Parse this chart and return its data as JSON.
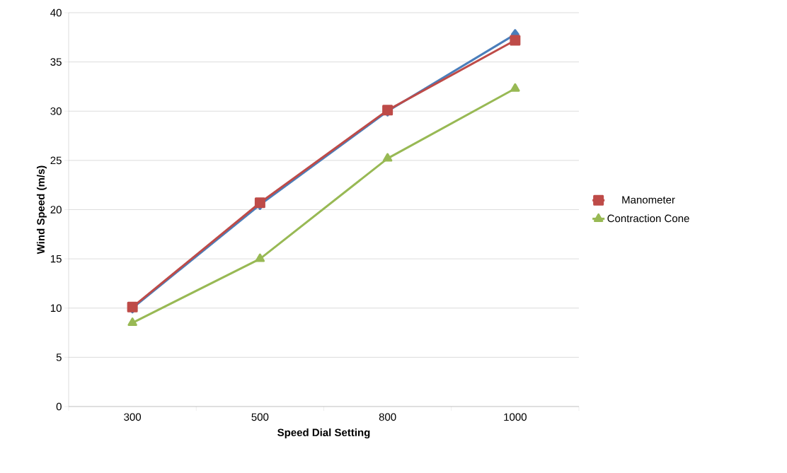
{
  "chart_data": {
    "type": "line",
    "xlabel": "Speed Dial Setting",
    "ylabel": "Wind Speed (m/s)",
    "categories": [
      "300",
      "500",
      "800",
      "1000"
    ],
    "series": [
      {
        "color": "#4a7ebb",
        "marker": "diamond",
        "values": [
          10,
          20.5,
          30,
          37.8
        ]
      },
      {
        "name": "Manometer",
        "color": "#be4b48",
        "marker": "square",
        "values": [
          10.1,
          20.7,
          30.1,
          37.2
        ]
      },
      {
        "name": "Contraction Cone",
        "color": "#98b954",
        "marker": "triangle",
        "values": [
          8.5,
          15,
          25.2,
          32.3
        ]
      }
    ],
    "ylim": [
      0,
      40
    ],
    "yticks": [
      0,
      5,
      10,
      15,
      20,
      25,
      30,
      35,
      40
    ],
    "grid": "y",
    "legend": "right",
    "line_style": "solid"
  }
}
